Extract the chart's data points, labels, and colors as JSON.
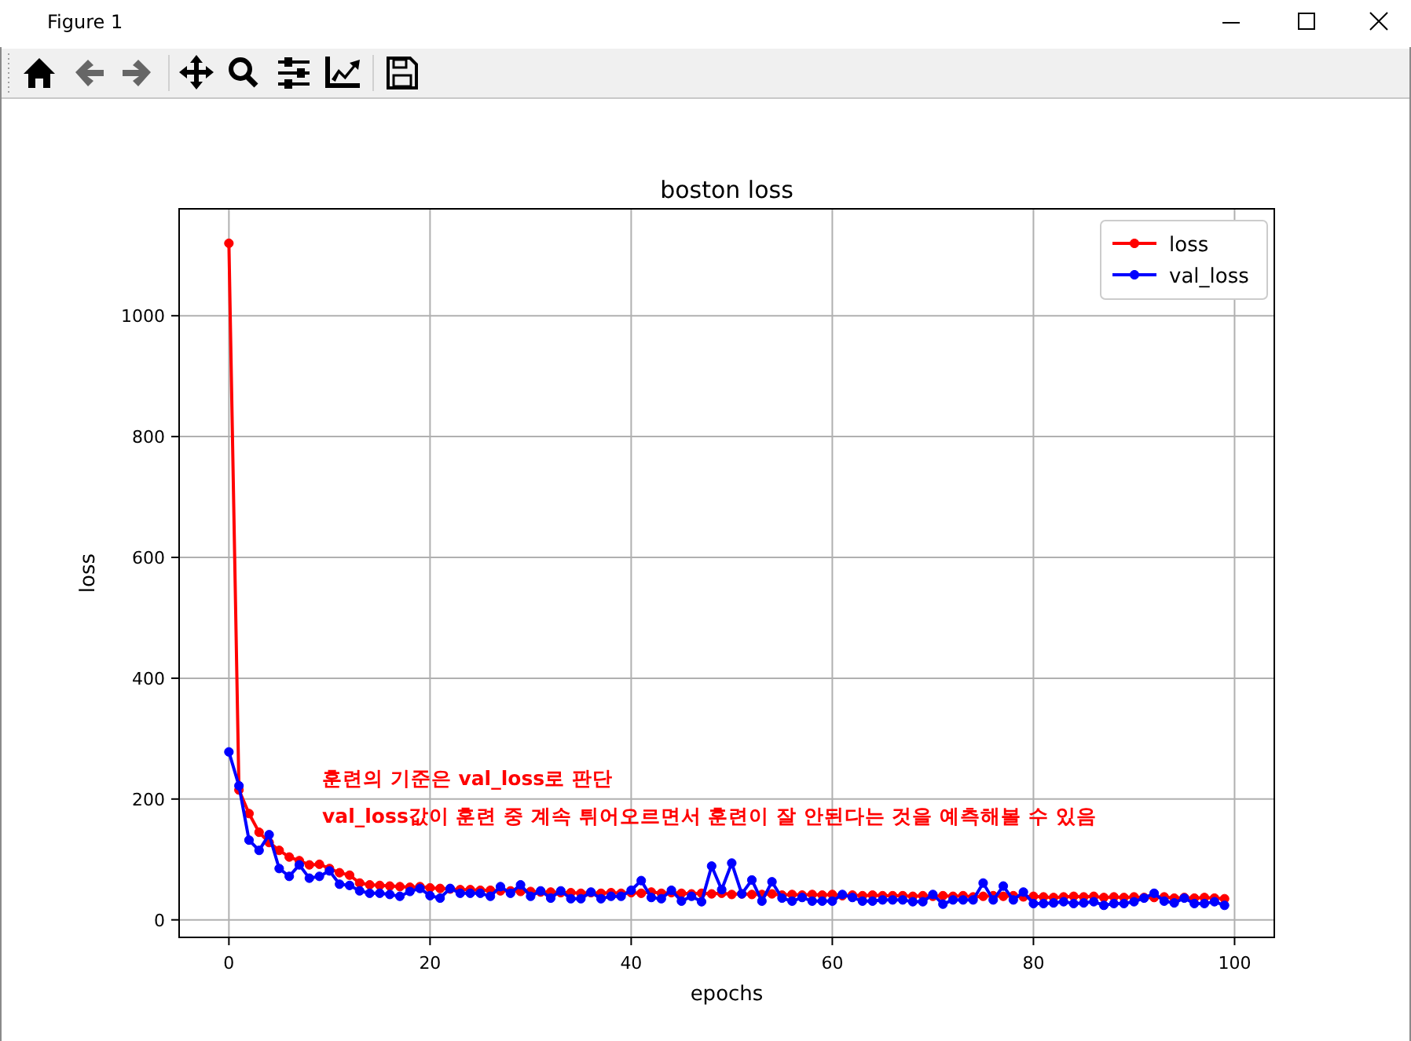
{
  "chart_data": {
    "type": "line",
    "title": "boston loss",
    "xlabel": "epochs",
    "ylabel": "loss",
    "x": [
      0,
      1,
      2,
      3,
      4,
      5,
      6,
      7,
      8,
      9,
      10,
      11,
      12,
      13,
      14,
      15,
      16,
      17,
      18,
      19,
      20,
      21,
      22,
      23,
      24,
      25,
      26,
      27,
      28,
      29,
      30,
      31,
      32,
      33,
      34,
      35,
      36,
      37,
      38,
      39,
      40,
      41,
      42,
      43,
      44,
      45,
      46,
      47,
      48,
      49,
      50,
      51,
      52,
      53,
      54,
      55,
      56,
      57,
      58,
      59,
      60,
      61,
      62,
      63,
      64,
      65,
      66,
      67,
      68,
      69,
      70,
      71,
      72,
      73,
      74,
      75,
      76,
      77,
      78,
      79,
      80,
      81,
      82,
      83,
      84,
      85,
      86,
      87,
      88,
      89,
      90,
      91,
      92,
      93,
      94,
      95,
      96,
      97,
      98,
      99
    ],
    "series": [
      {
        "name": "loss",
        "color": "#ff0000",
        "values": [
          1120,
          215,
          176,
          145,
          128,
          115,
          104,
          98,
          91,
          92,
          85,
          78,
          74,
          61,
          58,
          57,
          56,
          55,
          54,
          55,
          53,
          52,
          51,
          50,
          50,
          49,
          49,
          48,
          48,
          47,
          47,
          46,
          46,
          45,
          45,
          44,
          45,
          44,
          45,
          44,
          45,
          44,
          46,
          44,
          45,
          44,
          43,
          44,
          43,
          44,
          42,
          43,
          42,
          42,
          43,
          41,
          42,
          41,
          42,
          41,
          42,
          40,
          41,
          40,
          41,
          40,
          40,
          40,
          39,
          40,
          39,
          40,
          39,
          40,
          38,
          39,
          40,
          39,
          40,
          38,
          39,
          38,
          37,
          38,
          39,
          38,
          39,
          37,
          38,
          37,
          38,
          37,
          37,
          38,
          36,
          37,
          36,
          37,
          36,
          35
        ]
      },
      {
        "name": "val_loss",
        "color": "#0000ff",
        "values": [
          278,
          222,
          132,
          115,
          141,
          85,
          72,
          91,
          69,
          72,
          81,
          59,
          57,
          48,
          44,
          44,
          42,
          39,
          47,
          52,
          40,
          36,
          52,
          44,
          44,
          44,
          39,
          55,
          44,
          58,
          39,
          48,
          36,
          48,
          35,
          35,
          46,
          35,
          39,
          39,
          49,
          65,
          37,
          35,
          49,
          31,
          39,
          30,
          89,
          50,
          94,
          43,
          66,
          31,
          63,
          36,
          31,
          37,
          31,
          31,
          31,
          42,
          37,
          31,
          31,
          33,
          33,
          33,
          30,
          30,
          42,
          26,
          33,
          33,
          33,
          61,
          33,
          56,
          33,
          46,
          27,
          27,
          28,
          30,
          27,
          28,
          30,
          24,
          27,
          27,
          30,
          36,
          44,
          31,
          28,
          36,
          27,
          27,
          30,
          24
        ]
      }
    ],
    "xlim": [
      -4.95,
      103.95
    ],
    "ylim": [
      -29,
      1177
    ],
    "xticks": [
      0,
      20,
      40,
      60,
      80,
      100
    ],
    "yticks": [
      0,
      200,
      400,
      600,
      800,
      1000
    ],
    "grid": true,
    "legend": "top right",
    "marker": "circle",
    "line_style": "solid",
    "annotations": [
      "Figure 1",
      "훈련의 기준은 val_loss로 판단",
      "val_loss값이 훈련 중 계속 튀어오르면서 훈련이 잘 안된다는 것을 예측해볼 수 있음"
    ]
  }
}
